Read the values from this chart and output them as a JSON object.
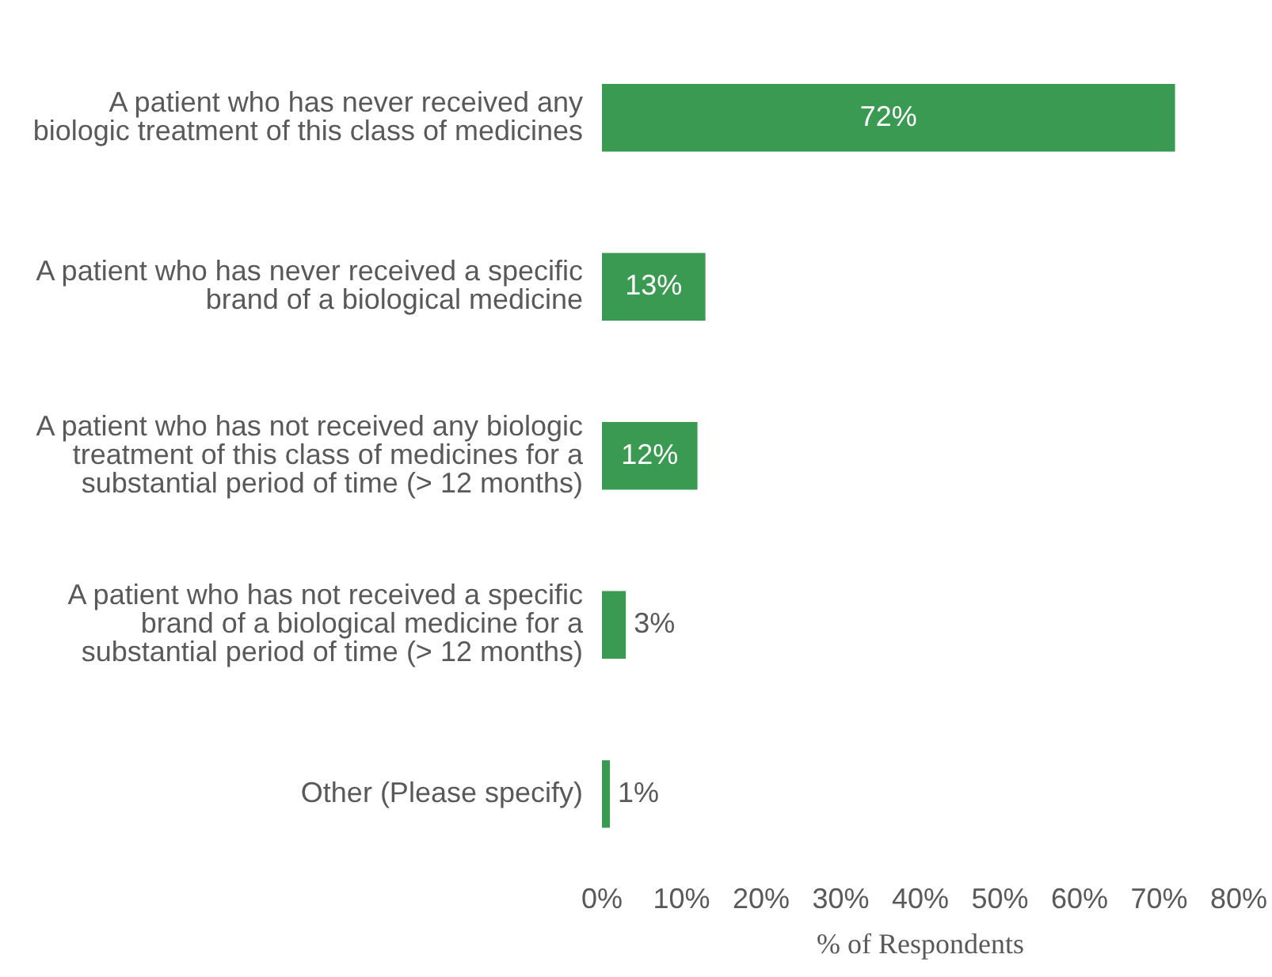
{
  "chart_data": {
    "type": "bar",
    "orientation": "horizontal",
    "categories": [
      "A patient who has never received any biologic treatment of this class of medicines",
      "A patient who has never received a specific brand of a biological medicine",
      "A patient who has not received any biologic treatment of this class of medicines for a substantial period of time (> 12 months)",
      "A patient who has not received a specific brand of a biological medicine for a substantial period of time (> 12 months)",
      "Other (Please specify)"
    ],
    "values": [
      72,
      13,
      12,
      3,
      1
    ],
    "value_labels": [
      "72%",
      "13%",
      "12%",
      "3%",
      "1%"
    ],
    "color": "#3a9a52",
    "xlabel": "% of Respondents",
    "xlim": [
      0,
      80
    ],
    "xticks": [
      {
        "value": 0,
        "label": "0%"
      },
      {
        "value": 10,
        "label": "10%"
      },
      {
        "value": 20,
        "label": "20%"
      },
      {
        "value": 30,
        "label": "30%"
      },
      {
        "value": 40,
        "label": "40%"
      },
      {
        "value": 50,
        "label": "50%"
      },
      {
        "value": 60,
        "label": "60%"
      },
      {
        "value": 70,
        "label": "70%"
      },
      {
        "value": 80,
        "label": "80%"
      }
    ],
    "grid": false,
    "legend": false
  }
}
